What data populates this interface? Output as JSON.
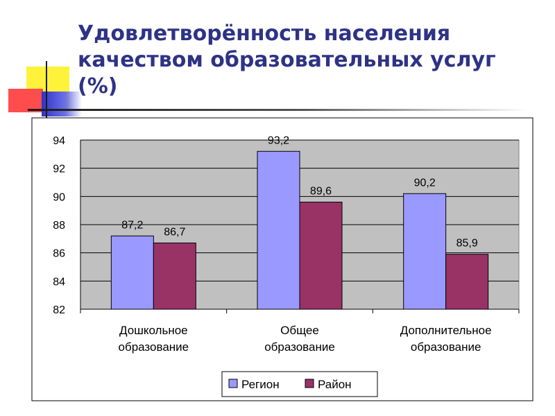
{
  "slide": {
    "title": "Удовлетворённость населения качеством образовательных услуг (%)"
  },
  "colors": {
    "title": "#2e3386",
    "plot_background": "#c0c0c0",
    "series_region": "#9999ff",
    "series_district": "#993366"
  },
  "chart_data": {
    "type": "bar",
    "title": "",
    "xlabel": "",
    "ylabel": "",
    "categories": [
      [
        "Дошкольное",
        "образование"
      ],
      [
        "Общее",
        "образование"
      ],
      [
        "Дополнительное",
        "образование"
      ]
    ],
    "series": [
      {
        "name": "Регион",
        "values": [
          87.2,
          93.2,
          90.2
        ],
        "labels": [
          "87,2",
          "93,2",
          "90,2"
        ]
      },
      {
        "name": "Район",
        "values": [
          86.7,
          89.6,
          85.9
        ],
        "labels": [
          "86,7",
          "89,6",
          "85,9"
        ]
      }
    ],
    "ylim": [
      82,
      94
    ],
    "yticks": [
      82,
      84,
      86,
      88,
      90,
      92,
      94
    ],
    "grid": true,
    "legend": "bottom"
  }
}
